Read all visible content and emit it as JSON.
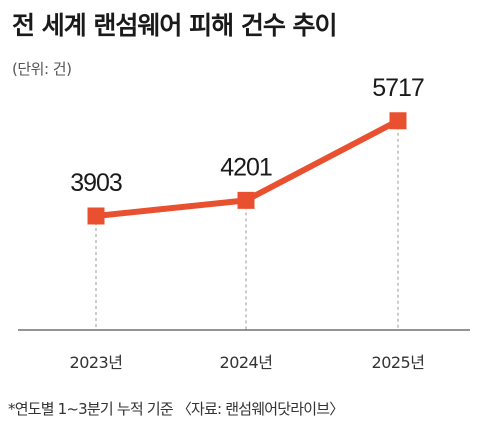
{
  "header": {
    "title": "전 세계 랜섬웨어 피해 건수 추이",
    "unit": "(단위: 건)"
  },
  "footer": {
    "note": "*연도별 1~3분기 누적 기준 〈자료: 랜섬웨어닷라이브〉"
  },
  "chart_data": {
    "type": "line",
    "categories": [
      "2023년",
      "2024년",
      "2025년"
    ],
    "series": [
      {
        "values": [
          3903,
          4201,
          5717
        ],
        "color": "#e8502f"
      }
    ],
    "data_labels": [
      "3903",
      "4201",
      "5717"
    ],
    "title": "전 세계 랜섬웨어 피해 건수 추이",
    "ylabel": "(단위: 건)",
    "ylim": [
      3500,
      6000
    ],
    "grid": false,
    "marker": "square",
    "guide_lines": "dashed-vertical"
  }
}
